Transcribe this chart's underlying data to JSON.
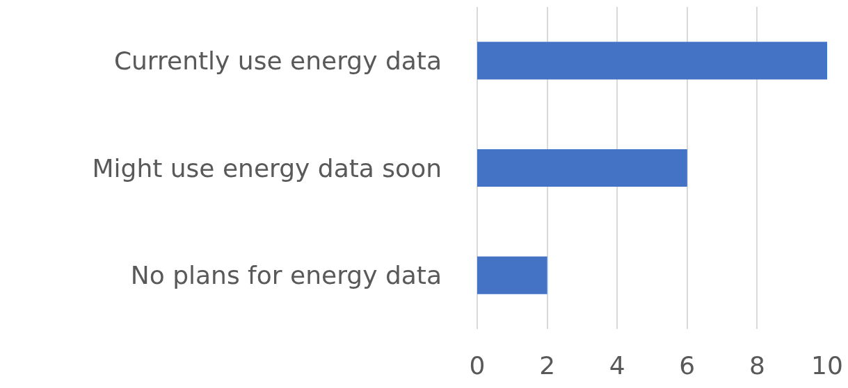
{
  "chart_data": {
    "type": "bar",
    "orientation": "horizontal",
    "categories": [
      "Currently use energy data",
      "Might use energy data soon",
      "No plans for energy data"
    ],
    "values": [
      10,
      6,
      2
    ],
    "color": "#4472c4",
    "xlim": [
      0,
      10
    ],
    "xticks": [
      0,
      2,
      4,
      6,
      8,
      10
    ],
    "grid": "x"
  }
}
